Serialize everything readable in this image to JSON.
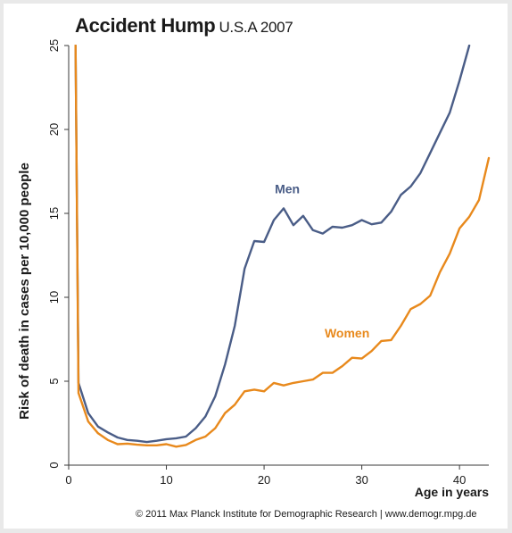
{
  "chart_data": {
    "type": "line",
    "title": "Accident Hump",
    "subtitle": "U.S.A 2007",
    "xlabel": "Age in years",
    "ylabel": "Risk of death in cases per 10,000 people",
    "xlim": [
      0,
      43
    ],
    "ylim": [
      0,
      25
    ],
    "xticks": [
      0,
      10,
      20,
      30,
      40
    ],
    "yticks": [
      0,
      5,
      10,
      15,
      20,
      25
    ],
    "grid": false,
    "legend": "inline labels",
    "series": [
      {
        "name": "Men",
        "color": "#4a5d87",
        "x": [
          0.7,
          1,
          2,
          3,
          4,
          5,
          6,
          7,
          8,
          9,
          10,
          11,
          12,
          13,
          14,
          15,
          16,
          17,
          18,
          19,
          20,
          21,
          22,
          23,
          24,
          25,
          26,
          27,
          28,
          29,
          30,
          31,
          32,
          33,
          34,
          35,
          36,
          37,
          38,
          39,
          40,
          41
        ],
        "y": [
          25,
          4.9,
          3.1,
          2.3,
          1.95,
          1.65,
          1.5,
          1.45,
          1.38,
          1.45,
          1.55,
          1.6,
          1.7,
          2.2,
          2.9,
          4.1,
          6.0,
          8.3,
          11.7,
          13.35,
          13.3,
          14.6,
          15.3,
          14.3,
          14.85,
          14.0,
          13.8,
          14.2,
          14.15,
          14.3,
          14.6,
          14.35,
          14.45,
          15.1,
          16.1,
          16.6,
          17.4,
          18.6,
          19.8,
          21.0,
          22.9,
          25.0
        ]
      },
      {
        "name": "Women",
        "color": "#e8891c",
        "x": [
          0.7,
          1,
          2,
          3,
          4,
          5,
          6,
          7,
          8,
          9,
          10,
          11,
          12,
          13,
          14,
          15,
          16,
          17,
          18,
          19,
          20,
          21,
          22,
          23,
          24,
          25,
          26,
          27,
          28,
          29,
          30,
          31,
          32,
          33,
          34,
          35,
          36,
          37,
          38,
          39,
          40,
          41,
          42,
          43
        ],
        "y": [
          25,
          4.3,
          2.6,
          1.9,
          1.5,
          1.25,
          1.28,
          1.22,
          1.18,
          1.18,
          1.25,
          1.1,
          1.2,
          1.5,
          1.7,
          2.2,
          3.1,
          3.6,
          4.4,
          4.5,
          4.4,
          4.9,
          4.75,
          4.9,
          5.0,
          5.1,
          5.5,
          5.5,
          5.9,
          6.4,
          6.35,
          6.8,
          7.4,
          7.45,
          8.3,
          9.3,
          9.6,
          10.1,
          11.5,
          12.6,
          14.1,
          14.8,
          15.8,
          18.3
        ]
      }
    ],
    "series_labels": [
      {
        "text": "Men",
        "color": "#4a5d87",
        "x": 21.1,
        "y": 16.2
      },
      {
        "text": "Women",
        "color": "#e8891c",
        "x": 26.2,
        "y": 7.6
      }
    ]
  },
  "footer": "© 2011 Max Planck Institute for Demographic Research | www.demogr.mpg.de",
  "colors": {
    "axis": "#3a3a3a",
    "text": "#1a1a1a"
  }
}
